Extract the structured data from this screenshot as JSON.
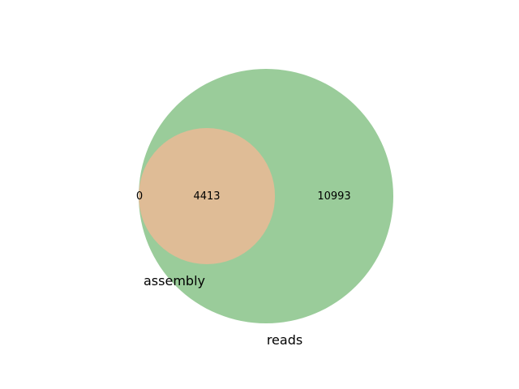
{
  "chart_data": {
    "type": "venn",
    "title": "",
    "sets": [
      {
        "name": "assembly",
        "color": "#dfbc96"
      },
      {
        "name": "reads",
        "color": "#9acc9a"
      }
    ],
    "regions": {
      "assembly_only": "0",
      "both": "4413",
      "reads_only": "10993"
    },
    "sizes": {
      "assembly": 4413,
      "reads": 15406
    },
    "relationship": "assembly is contained within reads"
  }
}
